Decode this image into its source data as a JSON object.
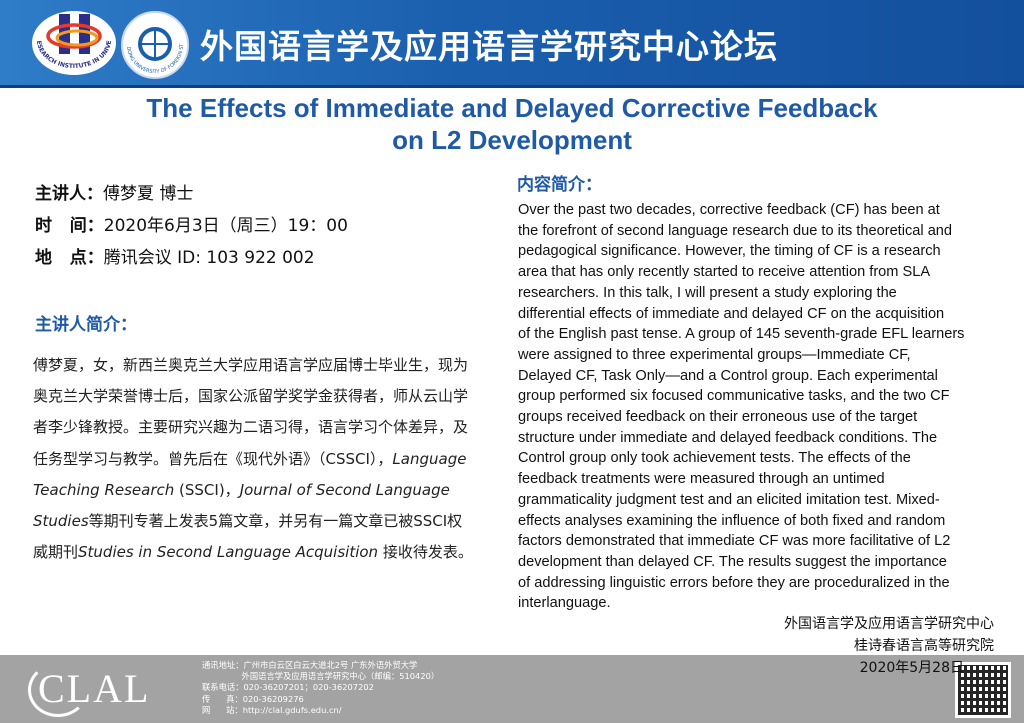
{
  "header": {
    "title": "外国语言学及应用语言学研究中心论坛",
    "logo1_text": "KEY RESEARCH INSTITUTE IN UNIVERSITY",
    "logo2_text": "GUANGDONG UNIVERSITY OF FOREIGN STUDIES"
  },
  "talk": {
    "title_line1": "The Effects of Immediate and Delayed Corrective Feedback",
    "title_line2": "on L2 Development"
  },
  "info": [
    {
      "label": "主讲人：",
      "value": "傅梦夏  博士"
    },
    {
      "label": "时   间：",
      "value": "2020年6月3日（周三）19：00"
    },
    {
      "label": "地   点：",
      "value": "腾讯会议 ID: 103 922 002"
    }
  ],
  "speaker_heading": "主讲人简介：",
  "bio": [
    {
      "t": "傅梦夏，女，新西兰奥克兰大学应用语言学应届博士毕业生，现为奥克兰大学荣誉博士后，国家公派留学奖学金获得者，师从云山学者李少锋教授。主要研究兴趣为二语习得，语言学习个体差异，及任务型学习与教学。曾先后在《现代外语》（CSSCI），",
      "i": false
    },
    {
      "t": "Language Teaching Research",
      "i": true
    },
    {
      "t": " (SSCI)，",
      "i": false
    },
    {
      "t": "Journal of Second Language Studies",
      "i": true
    },
    {
      "t": "等期刊专著上发表5篇文章，并另有一篇文章已被SSCI权威期刊",
      "i": false
    },
    {
      "t": "Studies in Second Language Acquisition",
      "i": true
    },
    {
      "t": " 接收待发表。",
      "i": false
    }
  ],
  "abstract_heading": "内容简介：",
  "abstract_lines": [
    "Over the past two decades, corrective feedback (CF) has been at",
    "the forefront of second language research due to its theoretical and",
    "pedagogical significance. However, the timing of CF is a research",
    "area that has only recently started to receive attention from SLA",
    "researchers. In this talk, I will present a study exploring the",
    "differential effects of immediate and delayed CF on the acquisition",
    "of the English past tense. A group of 145 seventh-grade EFL learners",
    "were assigned to three experimental groups—Immediate CF,",
    "Delayed CF, Task Only—and a Control group. Each experimental",
    "group performed six focused communicative tasks, and the two CF",
    "groups received feedback on their erroneous use of the target",
    "structure under immediate and delayed feedback conditions. The",
    "Control group only took achievement tests. The effects of the",
    "feedback treatments were measured through an untimed",
    "grammaticality judgment test and an elicited imitation test. Mixed-",
    "effects analyses examining the influence of both fixed and random",
    "factors demonstrated that immediate CF was more facilitative of L2",
    "development than delayed CF. The results suggest the importance",
    "of addressing linguistic errors before they are proceduralized in the",
    "interlanguage."
  ],
  "signature": {
    "org1": "外国语言学及应用语言学研究中心",
    "org2": "桂诗春语言高等研究院",
    "date": "2020年5月28日"
  },
  "footer": {
    "logo": "CLAL",
    "contact": [
      "通讯地址：广州市白云区白云大道北2号 广东外语外贸大学",
      "               外国语言学及应用语言学研究中心（邮编：510420）",
      "联系电话：020-36207201；020-36207202",
      "传      真：020-36209276",
      "网      站：http://clal.gdufs.edu.cn/"
    ]
  }
}
